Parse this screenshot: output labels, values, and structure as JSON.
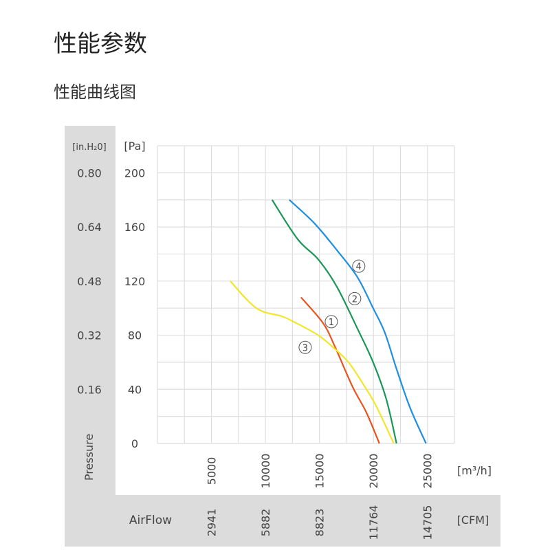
{
  "page": {
    "title": "性能参数",
    "subtitle": "性能曲线图"
  },
  "chart_data": {
    "type": "line",
    "title": "",
    "xlabel": "AirFlow",
    "ylabel": "Pressure",
    "x_unit": "[m³/h]",
    "x_unit2": "[CFM]",
    "y_unit": "[Pa]",
    "y_unit2": "[in.H₂0]",
    "xlim": [
      0,
      27500
    ],
    "ylim": [
      0,
      220
    ],
    "grid": true,
    "x_ticks": [
      "5000",
      "10000",
      "15000",
      "20000",
      "25000"
    ],
    "x_tick_values": [
      5000,
      10000,
      15000,
      20000,
      25000
    ],
    "x_ticks_cfm": [
      "2941",
      "5882",
      "8823",
      "11764",
      "14705"
    ],
    "y_ticks": [
      "0",
      "40",
      "80",
      "120",
      "160",
      "200"
    ],
    "y_tick_values": [
      0,
      40,
      80,
      120,
      160,
      200
    ],
    "y_ticks_inh2o": [
      "",
      "0.16",
      "0.32",
      "0.48",
      "0.64",
      "0.80"
    ],
    "series": [
      {
        "name": "①",
        "color": "#e8541e",
        "label_at": [
          16100,
          90
        ],
        "x": [
          13290,
          15330,
          16410,
          18060,
          19340,
          20550
        ],
        "y": [
          108,
          89,
          72,
          42,
          23,
          0
        ]
      },
      {
        "name": "②",
        "color": "#1a9658",
        "label_at": [
          18260,
          107
        ],
        "x": [
          10620,
          12980,
          14890,
          16600,
          18510,
          19970,
          21180,
          22140
        ],
        "y": [
          180,
          151,
          136,
          116,
          85,
          60,
          33,
          0
        ]
      },
      {
        "name": "③",
        "color": "#f2e62c",
        "label_at": [
          13680,
          71
        ],
        "x": [
          6740,
          9160,
          11510,
          12600,
          14890,
          16410,
          17690,
          18960,
          20230,
          21880
        ],
        "y": [
          120,
          100,
          94,
          90,
          80,
          70,
          60,
          45,
          28,
          0
        ]
      },
      {
        "name": "④",
        "color": "#1e8fe0",
        "label_at": [
          18640,
          131
        ],
        "x": [
          12210,
          14500,
          16600,
          18510,
          19970,
          21050,
          22140,
          23410,
          24870
        ],
        "y": [
          180,
          163,
          143,
          123,
          100,
          82,
          55,
          26,
          0
        ]
      }
    ]
  }
}
